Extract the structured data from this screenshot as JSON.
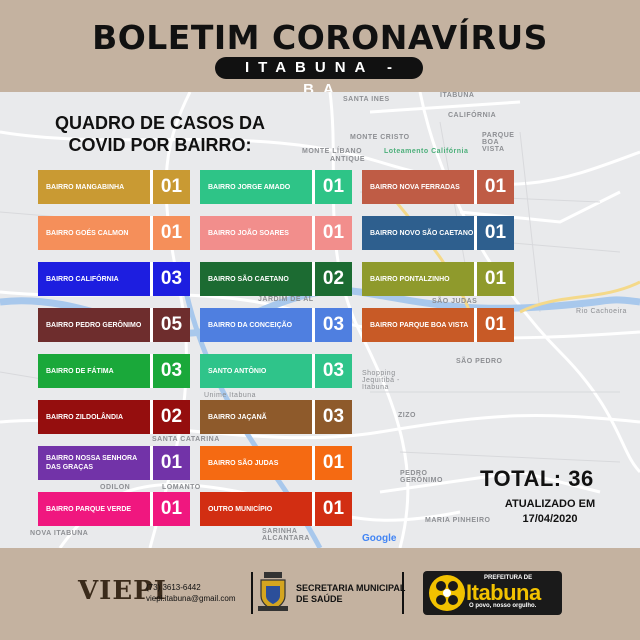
{
  "header": {
    "title": "BOLETIM CORONAVÍRUS",
    "city": "ITABUNA - BA"
  },
  "quadro": {
    "line1": "QUADRO DE CASOS DA",
    "line2": "COVID POR BAIRRO:"
  },
  "map_labels": {
    "santa_ines": "SANTA INES",
    "itabuna": "ITABUNA",
    "california": "CALIFÓRNIA",
    "monte_cristo": "MONTE CRISTO",
    "parque_boa_vista": "PARQUE BOA VISTA",
    "monte_libano": "MONTE LÍBANO",
    "antique": "ANTIQUE",
    "loteamento": "Loteamento Califórnia",
    "rio_cachoeira": "Rio Cachoeira",
    "jardim": "JARDIM DE AL",
    "sao_judas": "SÃO JUDAS",
    "sao_pedro": "SÃO PEDRO",
    "shopping": "Shopping Jequitibá - Itabuna",
    "unime": "Unime Itabuna",
    "zizo": "ZIZO",
    "santa_catarina": "SANTA CATARINA",
    "pedro_geronimo": "PEDRO GERÔNIMO",
    "odilon": "ODILON",
    "lomanto": "LOMANTO",
    "maria_pinheiro": "MARIA PINHEIRO",
    "nova_itabuna": "NOVA ITABUNA",
    "sarinha": "SARINHA ALCANTARA",
    "google": "Google"
  },
  "cards": [
    {
      "label": "BAIRRO MANGABINHA",
      "count": "01",
      "color": "#c99a33"
    },
    {
      "label": "BAIRRO JORGE AMADO",
      "count": "01",
      "color": "#2ec487"
    },
    {
      "label": "BAIRRO NOVA FERRADAS",
      "count": "01",
      "color": "#bf5c45"
    },
    {
      "label": "BAIRRO GOÉS CALMON",
      "count": "01",
      "color": "#f58f5a"
    },
    {
      "label": "BAIRRO JOÃO SOARES",
      "count": "01",
      "color": "#f28e8c"
    },
    {
      "label": "BAIRRO NOVO SÃO CAETANO",
      "count": "01",
      "color": "#2e5f8e"
    },
    {
      "label": "BAIRRO CALIFÓRNIA",
      "count": "03",
      "color": "#1d1ee0"
    },
    {
      "label": "BAIRRO SÃO CAETANO",
      "count": "02",
      "color": "#1c6b32"
    },
    {
      "label": "BAIRRO PONTALZINHO",
      "count": "01",
      "color": "#8f9a2c"
    },
    {
      "label": "BAIRRO PEDRO GERÔNIMO",
      "count": "05",
      "color": "#6e2d2d"
    },
    {
      "label": "BAIRRO DA CONCEIÇÃO",
      "count": "03",
      "color": "#4f7fe0"
    },
    {
      "label": "BAIRRO PARQUE BOA VISTA",
      "count": "01",
      "color": "#c85a26"
    },
    {
      "label": "BAIRRO DE FÁTIMA",
      "count": "03",
      "color": "#1aa83a"
    },
    {
      "label": "SANTO ANTÔNIO",
      "count": "03",
      "color": "#2fc48a"
    },
    {
      "label": "BAIRRO ZILDOLÂNDIA",
      "count": "02",
      "color": "#950e0e"
    },
    {
      "label": "BAIRRO JAÇANÃ",
      "count": "03",
      "color": "#8e5a2b"
    },
    {
      "label": "BAIRRO NOSSA SENHORA DAS GRAÇAS",
      "count": "01",
      "color": "#7233a8"
    },
    {
      "label": "BAIRRO SÃO JUDAS",
      "count": "01",
      "color": "#f56a12"
    },
    {
      "label": "BAIRRO PARQUE VERDE",
      "count": "01",
      "color": "#f0177f"
    },
    {
      "label": "OUTRO MUNICÍPIO",
      "count": "01",
      "color": "#d22e12"
    }
  ],
  "summary": {
    "total": "TOTAL: 36",
    "updated_line1": "ATUALIZADO EM",
    "updated_line2": "17/04/2020"
  },
  "footer": {
    "viepi_logo": "VIEPI",
    "phone": "(73) 3613-6442",
    "email": "viepi.itabuna@gmail.com",
    "secretaria_line1": "SECRETARIA MUNICIPAL",
    "secretaria_line2": "DE SAÚDE",
    "prefeitura_label": "PREFEITURA DE",
    "prefeitura_name": "Itabuna",
    "slogan": "O povo, nosso orgulho."
  }
}
